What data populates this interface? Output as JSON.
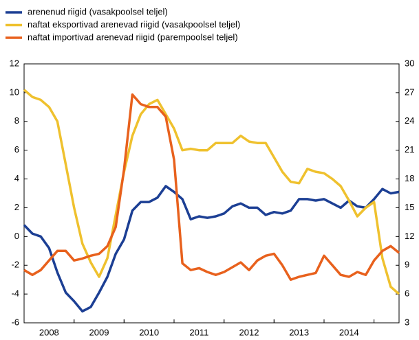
{
  "chart_data": {
    "type": "line",
    "x": [
      2008,
      2008.1667,
      2008.3333,
      2008.5,
      2008.6667,
      2008.8333,
      2009,
      2009.1667,
      2009.3333,
      2009.5,
      2009.6667,
      2009.8333,
      2010,
      2010.1667,
      2010.3333,
      2010.5,
      2010.6667,
      2010.8333,
      2011,
      2011.1667,
      2011.3333,
      2011.5,
      2011.6667,
      2011.8333,
      2012,
      2012.1667,
      2012.3333,
      2012.5,
      2012.6667,
      2012.8333,
      2013,
      2013.1667,
      2013.3333,
      2013.5,
      2013.6667,
      2013.8333,
      2014,
      2014.1667,
      2014.3333,
      2014.5,
      2014.6667,
      2014.8333,
      2015,
      2015.1667,
      2015.3333,
      2015.5
    ],
    "xlim": [
      2008,
      2015.5
    ],
    "xticks": [
      {
        "value": 2008.5,
        "label": "2008"
      },
      {
        "value": 2009.5,
        "label": "2009"
      },
      {
        "value": 2010.5,
        "label": "2010"
      },
      {
        "value": 2011.5,
        "label": "2011"
      },
      {
        "value": 2012.5,
        "label": "2012"
      },
      {
        "value": 2013.5,
        "label": "2013"
      },
      {
        "value": 2014.5,
        "label": "2014"
      }
    ],
    "ylim": [
      -6,
      12
    ],
    "yticks": [
      -6,
      -4,
      -2,
      0,
      2,
      4,
      6,
      8,
      10,
      12
    ],
    "y2lim": [
      3,
      30
    ],
    "y2ticks": [
      3,
      6,
      9,
      12,
      15,
      18,
      21,
      24,
      27,
      30
    ],
    "series": [
      {
        "name": "arenenud riigid (vasakpoolsel teljel)",
        "color": "#1c3f94",
        "values": [
          0.8,
          0.2,
          0,
          -0.8,
          -2.5,
          -3.9,
          -4.5,
          -5.2,
          -4.9,
          -3.9,
          -2.8,
          -1.2,
          -0.2,
          1.8,
          2.4,
          2.4,
          2.7,
          3.5,
          3.1,
          2.6,
          1.2,
          1.4,
          1.3,
          1.4,
          1.6,
          2.1,
          2.3,
          2.0,
          2.0,
          1.5,
          1.7,
          1.6,
          1.8,
          2.6,
          2.6,
          2.5,
          2.6,
          2.3,
          2.0,
          2.5,
          2.1,
          2.0,
          2.6,
          3.3,
          3.0,
          3.1
        ]
      },
      {
        "name": "naftat eksportivad arenevad riigid (vasakpoolsel teljel)",
        "color": "#efc12e",
        "values": [
          10.2,
          9.7,
          9.5,
          9.0,
          8.0,
          5.0,
          2.0,
          -0.5,
          -1.8,
          -2.8,
          -1.5,
          1.5,
          4.5,
          7.0,
          8.5,
          9.2,
          9.5,
          8.5,
          7.5,
          6.0,
          6.1,
          6.0,
          6.0,
          6.5,
          6.5,
          6.5,
          7.0,
          6.6,
          6.5,
          6.5,
          5.5,
          4.5,
          3.8,
          3.7,
          4.7,
          4.5,
          4.4,
          4.0,
          3.5,
          2.5,
          1.4,
          2.0,
          2.4,
          -1.5,
          -3.5,
          -4.0
        ]
      },
      {
        "name": "naftat importivad arenevad riigid (parempoolsel teljel)",
        "color": "#e8611d",
        "axis": "y2",
        "values": [
          8.5,
          8.0,
          8.5,
          9.5,
          10.5,
          10.5,
          9.5,
          9.7,
          10.0,
          10.2,
          11.0,
          13.0,
          19.0,
          26.8,
          25.8,
          25.5,
          25.5,
          24.5,
          20.0,
          9.2,
          8.5,
          8.7,
          8.3,
          8.0,
          8.3,
          8.8,
          9.3,
          8.5,
          9.5,
          10.0,
          10.2,
          9.0,
          7.5,
          7.8,
          8.0,
          8.2,
          10.0,
          9.0,
          8.0,
          7.8,
          8.3,
          8.0,
          9.5,
          10.5,
          11.0,
          10.3
        ]
      }
    ]
  }
}
